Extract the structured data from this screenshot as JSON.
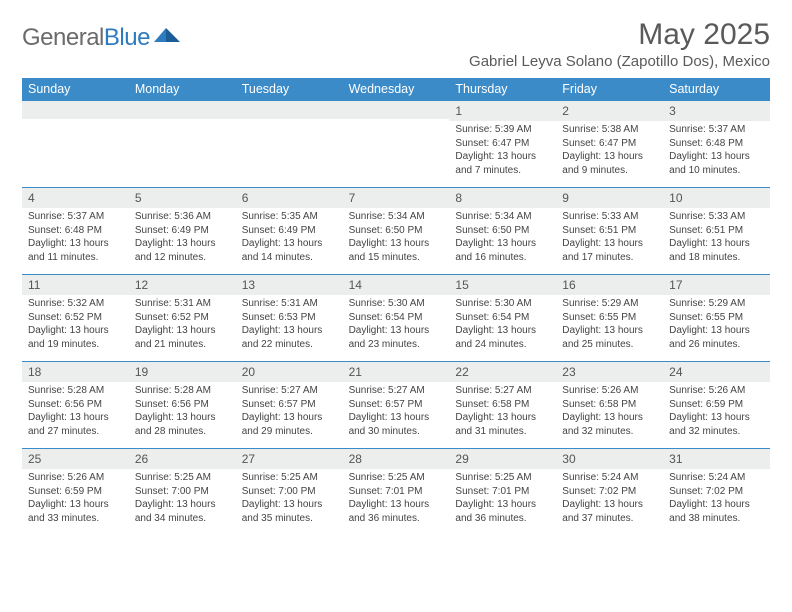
{
  "logo": {
    "general": "General",
    "blue": "Blue"
  },
  "header": {
    "month_title": "May 2025",
    "location": "Gabriel Leyva Solano (Zapotillo Dos), Mexico"
  },
  "colors": {
    "header_bg": "#3b8bc9",
    "header_text": "#ffffff",
    "daynum_bg": "#eceded",
    "week_border": "#3b8bc9",
    "body_text": "#444444"
  },
  "day_names": [
    "Sunday",
    "Monday",
    "Tuesday",
    "Wednesday",
    "Thursday",
    "Friday",
    "Saturday"
  ],
  "weeks": [
    [
      {
        "empty": true
      },
      {
        "empty": true
      },
      {
        "empty": true
      },
      {
        "empty": true
      },
      {
        "num": "1",
        "sunrise": "Sunrise: 5:39 AM",
        "sunset": "Sunset: 6:47 PM",
        "daylight": "Daylight: 13 hours and 7 minutes."
      },
      {
        "num": "2",
        "sunrise": "Sunrise: 5:38 AM",
        "sunset": "Sunset: 6:47 PM",
        "daylight": "Daylight: 13 hours and 9 minutes."
      },
      {
        "num": "3",
        "sunrise": "Sunrise: 5:37 AM",
        "sunset": "Sunset: 6:48 PM",
        "daylight": "Daylight: 13 hours and 10 minutes."
      }
    ],
    [
      {
        "num": "4",
        "sunrise": "Sunrise: 5:37 AM",
        "sunset": "Sunset: 6:48 PM",
        "daylight": "Daylight: 13 hours and 11 minutes."
      },
      {
        "num": "5",
        "sunrise": "Sunrise: 5:36 AM",
        "sunset": "Sunset: 6:49 PM",
        "daylight": "Daylight: 13 hours and 12 minutes."
      },
      {
        "num": "6",
        "sunrise": "Sunrise: 5:35 AM",
        "sunset": "Sunset: 6:49 PM",
        "daylight": "Daylight: 13 hours and 14 minutes."
      },
      {
        "num": "7",
        "sunrise": "Sunrise: 5:34 AM",
        "sunset": "Sunset: 6:50 PM",
        "daylight": "Daylight: 13 hours and 15 minutes."
      },
      {
        "num": "8",
        "sunrise": "Sunrise: 5:34 AM",
        "sunset": "Sunset: 6:50 PM",
        "daylight": "Daylight: 13 hours and 16 minutes."
      },
      {
        "num": "9",
        "sunrise": "Sunrise: 5:33 AM",
        "sunset": "Sunset: 6:51 PM",
        "daylight": "Daylight: 13 hours and 17 minutes."
      },
      {
        "num": "10",
        "sunrise": "Sunrise: 5:33 AM",
        "sunset": "Sunset: 6:51 PM",
        "daylight": "Daylight: 13 hours and 18 minutes."
      }
    ],
    [
      {
        "num": "11",
        "sunrise": "Sunrise: 5:32 AM",
        "sunset": "Sunset: 6:52 PM",
        "daylight": "Daylight: 13 hours and 19 minutes."
      },
      {
        "num": "12",
        "sunrise": "Sunrise: 5:31 AM",
        "sunset": "Sunset: 6:52 PM",
        "daylight": "Daylight: 13 hours and 21 minutes."
      },
      {
        "num": "13",
        "sunrise": "Sunrise: 5:31 AM",
        "sunset": "Sunset: 6:53 PM",
        "daylight": "Daylight: 13 hours and 22 minutes."
      },
      {
        "num": "14",
        "sunrise": "Sunrise: 5:30 AM",
        "sunset": "Sunset: 6:54 PM",
        "daylight": "Daylight: 13 hours and 23 minutes."
      },
      {
        "num": "15",
        "sunrise": "Sunrise: 5:30 AM",
        "sunset": "Sunset: 6:54 PM",
        "daylight": "Daylight: 13 hours and 24 minutes."
      },
      {
        "num": "16",
        "sunrise": "Sunrise: 5:29 AM",
        "sunset": "Sunset: 6:55 PM",
        "daylight": "Daylight: 13 hours and 25 minutes."
      },
      {
        "num": "17",
        "sunrise": "Sunrise: 5:29 AM",
        "sunset": "Sunset: 6:55 PM",
        "daylight": "Daylight: 13 hours and 26 minutes."
      }
    ],
    [
      {
        "num": "18",
        "sunrise": "Sunrise: 5:28 AM",
        "sunset": "Sunset: 6:56 PM",
        "daylight": "Daylight: 13 hours and 27 minutes."
      },
      {
        "num": "19",
        "sunrise": "Sunrise: 5:28 AM",
        "sunset": "Sunset: 6:56 PM",
        "daylight": "Daylight: 13 hours and 28 minutes."
      },
      {
        "num": "20",
        "sunrise": "Sunrise: 5:27 AM",
        "sunset": "Sunset: 6:57 PM",
        "daylight": "Daylight: 13 hours and 29 minutes."
      },
      {
        "num": "21",
        "sunrise": "Sunrise: 5:27 AM",
        "sunset": "Sunset: 6:57 PM",
        "daylight": "Daylight: 13 hours and 30 minutes."
      },
      {
        "num": "22",
        "sunrise": "Sunrise: 5:27 AM",
        "sunset": "Sunset: 6:58 PM",
        "daylight": "Daylight: 13 hours and 31 minutes."
      },
      {
        "num": "23",
        "sunrise": "Sunrise: 5:26 AM",
        "sunset": "Sunset: 6:58 PM",
        "daylight": "Daylight: 13 hours and 32 minutes."
      },
      {
        "num": "24",
        "sunrise": "Sunrise: 5:26 AM",
        "sunset": "Sunset: 6:59 PM",
        "daylight": "Daylight: 13 hours and 32 minutes."
      }
    ],
    [
      {
        "num": "25",
        "sunrise": "Sunrise: 5:26 AM",
        "sunset": "Sunset: 6:59 PM",
        "daylight": "Daylight: 13 hours and 33 minutes."
      },
      {
        "num": "26",
        "sunrise": "Sunrise: 5:25 AM",
        "sunset": "Sunset: 7:00 PM",
        "daylight": "Daylight: 13 hours and 34 minutes."
      },
      {
        "num": "27",
        "sunrise": "Sunrise: 5:25 AM",
        "sunset": "Sunset: 7:00 PM",
        "daylight": "Daylight: 13 hours and 35 minutes."
      },
      {
        "num": "28",
        "sunrise": "Sunrise: 5:25 AM",
        "sunset": "Sunset: 7:01 PM",
        "daylight": "Daylight: 13 hours and 36 minutes."
      },
      {
        "num": "29",
        "sunrise": "Sunrise: 5:25 AM",
        "sunset": "Sunset: 7:01 PM",
        "daylight": "Daylight: 13 hours and 36 minutes."
      },
      {
        "num": "30",
        "sunrise": "Sunrise: 5:24 AM",
        "sunset": "Sunset: 7:02 PM",
        "daylight": "Daylight: 13 hours and 37 minutes."
      },
      {
        "num": "31",
        "sunrise": "Sunrise: 5:24 AM",
        "sunset": "Sunset: 7:02 PM",
        "daylight": "Daylight: 13 hours and 38 minutes."
      }
    ]
  ]
}
